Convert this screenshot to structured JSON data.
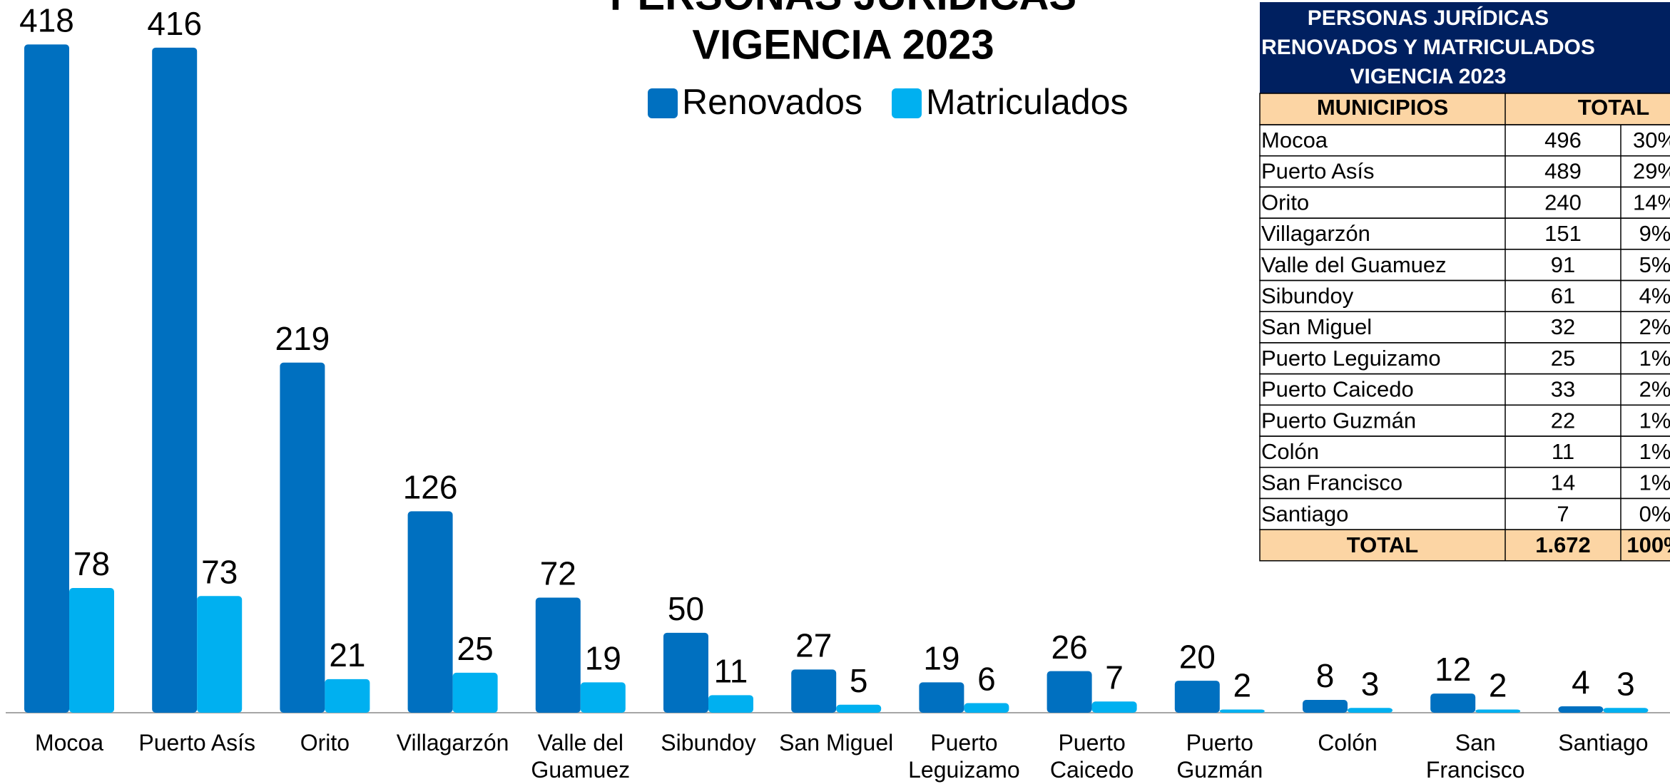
{
  "chart_data": {
    "type": "bar",
    "title": [
      "PERSONAS JURÍDICAS",
      "VIGENCIA 2023"
    ],
    "categories": [
      "Mocoa",
      "Puerto Asís",
      "Orito",
      "Villagarzón",
      "Valle del\nGuamuez",
      "Sibundoy",
      "San Miguel",
      "Puerto\nLeguizamo",
      "Puerto\nCaicedo",
      "Puerto\nGuzmán",
      "Colón",
      "San\nFrancisco",
      "Santiago"
    ],
    "series": [
      {
        "name": "Renovados",
        "color": "#0070c0",
        "values": [
          418,
          416,
          219,
          126,
          72,
          50,
          27,
          19,
          26,
          20,
          8,
          12,
          4
        ]
      },
      {
        "name": "Matriculados",
        "color": "#00b0f0",
        "values": [
          78,
          73,
          21,
          25,
          19,
          11,
          5,
          6,
          7,
          2,
          3,
          2,
          3
        ]
      }
    ],
    "ylim": [
      0,
      440
    ]
  },
  "table": {
    "title": [
      "PERSONAS JURÍDICAS",
      "RENOVADOS Y MATRICULADOS",
      "VIGENCIA 2023"
    ],
    "headers": [
      "MUNICIPIOS",
      "TOTAL"
    ],
    "rows": [
      [
        "Mocoa",
        "496",
        "30%"
      ],
      [
        "Puerto Asís",
        "489",
        "29%"
      ],
      [
        "Orito",
        "240",
        "14%"
      ],
      [
        "Villagarzón",
        "151",
        "9%"
      ],
      [
        "Valle del Guamuez",
        "91",
        "5%"
      ],
      [
        "Sibundoy",
        "61",
        "4%"
      ],
      [
        "San Miguel",
        "32",
        "2%"
      ],
      [
        "Puerto Leguizamo",
        "25",
        "1%"
      ],
      [
        "Puerto Caicedo",
        "33",
        "2%"
      ],
      [
        "Puerto Guzmán",
        "22",
        "1%"
      ],
      [
        "Colón",
        "11",
        "1%"
      ],
      [
        "San Francisco",
        "14",
        "1%"
      ],
      [
        "Santiago",
        "7",
        "0%"
      ]
    ],
    "total": [
      "TOTAL",
      "1.672",
      "100%"
    ]
  }
}
